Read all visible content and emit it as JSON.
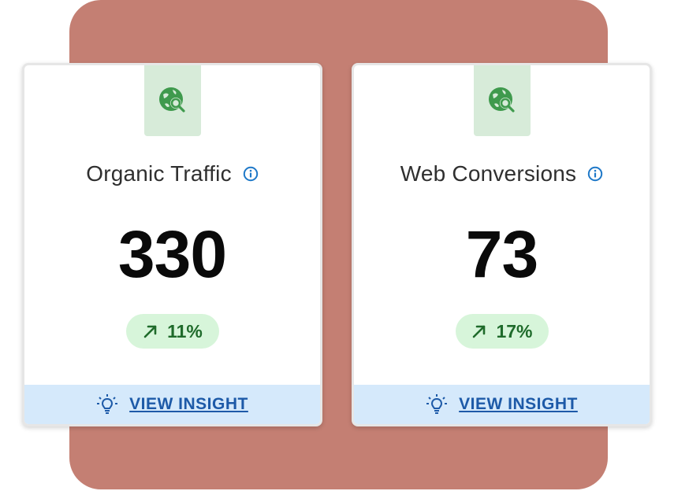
{
  "colors": {
    "backdrop": "#c47f73",
    "icon_tab": "#d7ebd9",
    "icon_green": "#3f9a4d",
    "badge_bg": "#d7f5da",
    "badge_text": "#1f6b2b",
    "insight_bg": "#d5e9fb",
    "link_blue": "#1d5aa8",
    "info_blue": "#1e78c8"
  },
  "cards": [
    {
      "title": "Organic Traffic",
      "value": "330",
      "change": "11%",
      "trend_icon": "arrow-up-right-icon",
      "category_icon": "globe-search-icon",
      "insight_label": "VIEW INSIGHT"
    },
    {
      "title": "Web Conversions",
      "value": "73",
      "change": "17%",
      "trend_icon": "arrow-up-right-icon",
      "category_icon": "globe-search-icon",
      "insight_label": "VIEW INSIGHT"
    }
  ]
}
